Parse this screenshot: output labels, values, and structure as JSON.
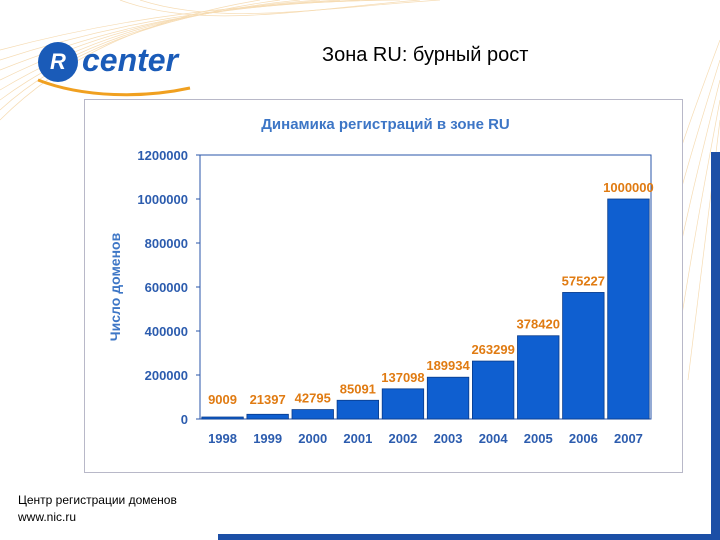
{
  "slide": {
    "title": "Зона RU: бурный рост",
    "logo_letter": "R",
    "logo_text": "center",
    "footer_line1": "Центр регистрации доменов",
    "footer_line2": "www.nic.ru"
  },
  "colors": {
    "bar": "#0f5fd0",
    "label": "#e07b12",
    "title": "#3d76c6",
    "axis_text": "#2c5cae",
    "accent": "#1c4fa6"
  },
  "chart_data": {
    "type": "bar",
    "title": "Динамика регистраций в зоне RU",
    "xlabel": "",
    "ylabel": "Число доменов",
    "categories": [
      "1998",
      "1999",
      "2000",
      "2001",
      "2002",
      "2003",
      "2004",
      "2005",
      "2006",
      "2007"
    ],
    "values": [
      9009,
      21397,
      42795,
      85091,
      137098,
      189934,
      263299,
      378420,
      575227,
      1000000
    ],
    "value_labels": [
      "9009",
      "21397",
      "42795",
      "85091",
      "137098",
      "189934",
      "263299",
      "378420",
      "575227",
      "1000000"
    ],
    "ylim": [
      0,
      1200000
    ],
    "yticks": [
      0,
      200000,
      400000,
      600000,
      800000,
      1000000,
      1200000
    ],
    "ytick_labels": [
      "0",
      "200000",
      "400000",
      "600000",
      "800000",
      "1000000",
      "1200000"
    ],
    "grid": false
  }
}
